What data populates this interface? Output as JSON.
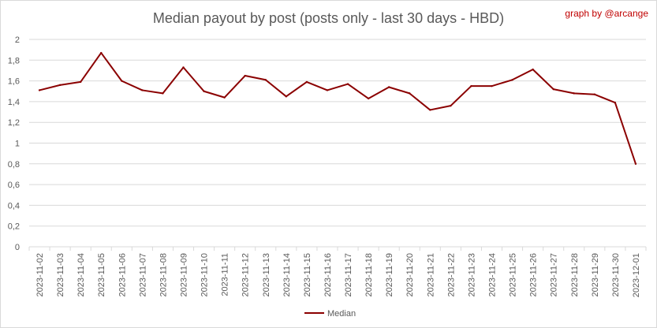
{
  "title": "Median payout by post (posts only - last 30 days - HBD)",
  "credit": "graph by @arcange",
  "colors": {
    "line": "#8b0000",
    "grid": "#d9d9d9",
    "text": "#595959",
    "credit": "#c00000"
  },
  "chart_data": {
    "type": "line",
    "title": "Median payout by post (posts only - last 30 days - HBD)",
    "xlabel": "",
    "ylabel": "",
    "ylim": [
      0,
      2
    ],
    "yticks": [
      0,
      0.2,
      0.4,
      0.6,
      0.8,
      1,
      1.2,
      1.4,
      1.6,
      1.8,
      2
    ],
    "ytick_labels": [
      "0",
      "0,2",
      "0,4",
      "0,6",
      "0,8",
      "1",
      "1,2",
      "1,4",
      "1,6",
      "1,8",
      "2"
    ],
    "grid": true,
    "legend": "bottom",
    "categories": [
      "2023-11-02",
      "2023-11-03",
      "2023-11-04",
      "2023-11-05",
      "2023-11-06",
      "2023-11-07",
      "2023-11-08",
      "2023-11-09",
      "2023-11-10",
      "2023-11-11",
      "2023-11-12",
      "2023-11-13",
      "2023-11-14",
      "2023-11-15",
      "2023-11-16",
      "2023-11-17",
      "2023-11-18",
      "2023-11-19",
      "2023-11-20",
      "2023-11-21",
      "2023-11-22",
      "2023-11-23",
      "2023-11-24",
      "2023-11-25",
      "2023-11-26",
      "2023-11-27",
      "2023-11-28",
      "2023-11-29",
      "2023-11-30",
      "2023-12-01"
    ],
    "series": [
      {
        "name": "Median",
        "color": "#8b0000",
        "values": [
          1.51,
          1.56,
          1.59,
          1.87,
          1.6,
          1.51,
          1.48,
          1.73,
          1.5,
          1.44,
          1.65,
          1.61,
          1.45,
          1.59,
          1.51,
          1.57,
          1.43,
          1.54,
          1.48,
          1.32,
          1.36,
          1.55,
          1.55,
          1.61,
          1.71,
          1.52,
          1.48,
          1.47,
          1.39,
          0.8
        ]
      }
    ]
  }
}
